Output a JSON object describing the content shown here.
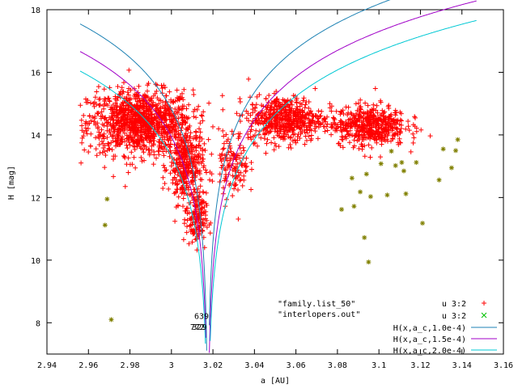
{
  "chart_data": {
    "type": "scatter",
    "xlabel": "a [AU]",
    "ylabel": "H [mag]",
    "xlim": [
      2.94,
      3.16
    ],
    "ylim": [
      7,
      18
    ],
    "xticks": [
      "2.94",
      "2.96",
      "2.98",
      "3",
      "3.02",
      "3.04",
      "3.06",
      "3.08",
      "3.1",
      "3.12",
      "3.14",
      "3.16"
    ],
    "xtick_values": [
      2.94,
      2.96,
      2.98,
      3.0,
      3.02,
      3.04,
      3.06,
      3.08,
      3.1,
      3.12,
      3.14,
      3.16
    ],
    "yticks": [
      "8",
      "10",
      "12",
      "14",
      "16",
      "18"
    ],
    "ytick_values": [
      8,
      10,
      12,
      14,
      16,
      18
    ],
    "grid": false,
    "legend_position": "bottom-right",
    "file_labels": [
      "\"family.list_50\"",
      "\"interlopers.out\""
    ],
    "series": [
      {
        "name": "u 3:2",
        "marker": "plus",
        "color": "#ff0000",
        "clusters": [
          {
            "x_center": 2.985,
            "y_center": 14.4,
            "x_spread": 0.021,
            "y_spread": 0.85,
            "count": 1100
          },
          {
            "x_center": 3.007,
            "y_center": 13.0,
            "x_spread": 0.007,
            "y_spread": 1.0,
            "count": 350
          },
          {
            "x_center": 3.012,
            "y_center": 11.3,
            "x_spread": 0.004,
            "y_spread": 0.7,
            "count": 140
          },
          {
            "x_center": 3.055,
            "y_center": 14.5,
            "x_spread": 0.015,
            "y_spread": 0.6,
            "count": 550
          },
          {
            "x_center": 3.095,
            "y_center": 14.3,
            "x_spread": 0.015,
            "y_spread": 0.55,
            "count": 500
          },
          {
            "x_center": 3.03,
            "y_center": 13.0,
            "x_spread": 0.006,
            "y_spread": 0.9,
            "count": 120
          }
        ]
      },
      {
        "name": "u 3:2",
        "marker": "x",
        "color": "#808000",
        "points": [
          [
            2.969,
            11.95
          ],
          [
            2.968,
            11.12
          ],
          [
            2.971,
            8.1
          ],
          [
            3.082,
            11.62
          ],
          [
            3.087,
            12.62
          ],
          [
            3.088,
            11.72
          ],
          [
            3.091,
            12.18
          ],
          [
            3.093,
            10.72
          ],
          [
            3.094,
            12.75
          ],
          [
            3.095,
            9.94
          ],
          [
            3.096,
            12.03
          ],
          [
            3.101,
            13.08
          ],
          [
            3.104,
            12.08
          ],
          [
            3.106,
            13.48
          ],
          [
            3.108,
            13.02
          ],
          [
            3.111,
            13.12
          ],
          [
            3.112,
            12.85
          ],
          [
            3.113,
            12.12
          ],
          [
            3.118,
            13.12
          ],
          [
            3.121,
            11.18
          ],
          [
            3.129,
            12.56
          ],
          [
            3.131,
            13.55
          ],
          [
            3.135,
            12.95
          ],
          [
            3.137,
            13.5
          ],
          [
            3.138,
            13.85
          ]
        ]
      },
      {
        "name": "H(x,a_c,1.0e-4)",
        "color": "#1e82b4",
        "curve": {
          "a_c": 3.0175,
          "c": 0.0001
        }
      },
      {
        "name": "H(x,a_c,1.5e-4)",
        "color": "#a000c8",
        "curve": {
          "a_c": 3.0175,
          "c": 0.00015
        }
      },
      {
        "name": "H(x,a_c,2.0e-4)",
        "color": "#00c8d4",
        "curve": {
          "a_c": 3.0175,
          "c": 0.0002
        }
      }
    ],
    "annotations": [
      {
        "text": "639",
        "x": 3.0145,
        "y": 8.12
      },
      {
        "text": "772",
        "x": 3.0125,
        "y": 7.77
      },
      {
        "text": "329",
        "x": 3.0135,
        "y": 7.77
      }
    ]
  }
}
